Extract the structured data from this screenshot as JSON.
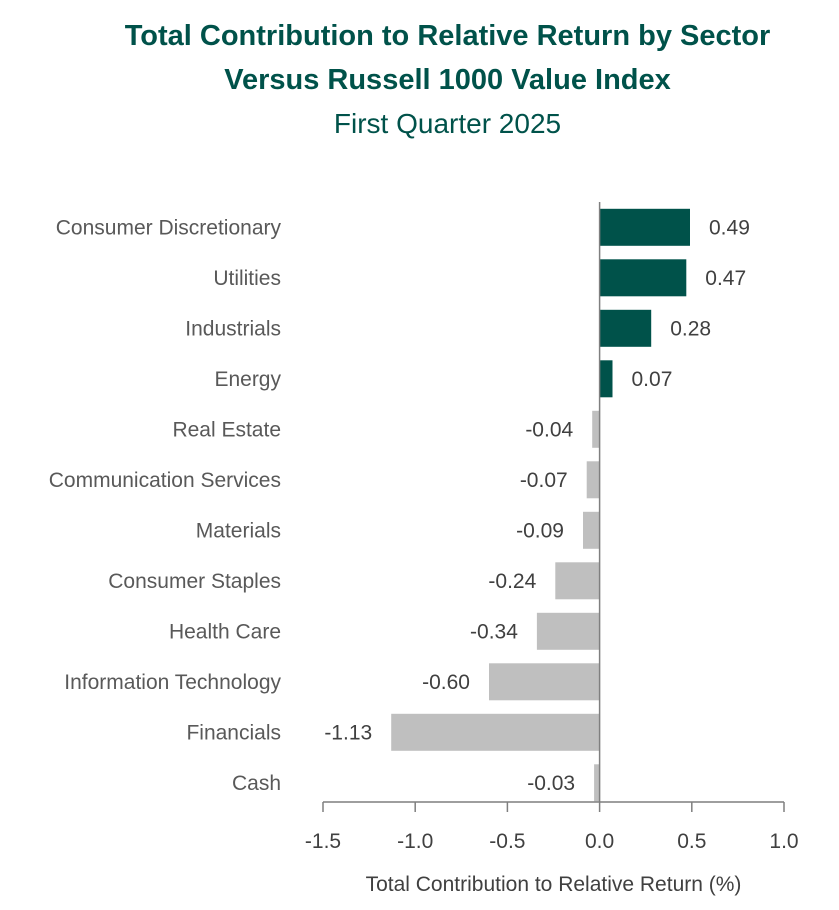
{
  "chart_data": {
    "type": "bar",
    "orientation": "horizontal",
    "title": "Total Contribution to Relative Return by Sector",
    "title_line2": "Versus Russell 1000 Value Index",
    "subtitle": "First Quarter 2025",
    "xlabel": "Total Contribution to Relative Return (%)",
    "ylabel": "",
    "xlim": [
      -1.5,
      1.0
    ],
    "xticks": [
      "-1.5",
      "-1.0",
      "-0.5",
      "0.0",
      "0.5",
      "1.0"
    ],
    "xtick_values": [
      -1.5,
      -1.0,
      -0.5,
      0.0,
      0.5,
      1.0
    ],
    "categories": [
      "Consumer Discretionary",
      "Utilities",
      "Industrials",
      "Energy",
      "Real Estate",
      "Communication Services",
      "Materials",
      "Consumer Staples",
      "Health Care",
      "Information Technology",
      "Financials",
      "Cash"
    ],
    "values": [
      0.49,
      0.47,
      0.28,
      0.07,
      -0.04,
      -0.07,
      -0.09,
      -0.24,
      -0.34,
      -0.6,
      -1.13,
      -0.03
    ],
    "value_labels": [
      "0.49",
      "0.47",
      "0.28",
      "0.07",
      "-0.04",
      "-0.07",
      "-0.09",
      "-0.24",
      "-0.34",
      "-0.60",
      "-1.13",
      "-0.03"
    ],
    "colors": {
      "positive": "#00524a",
      "negative": "#bfbfbf",
      "axis": "#7f7f7f",
      "title": "#00524a"
    },
    "grid": false,
    "legend": "none"
  }
}
